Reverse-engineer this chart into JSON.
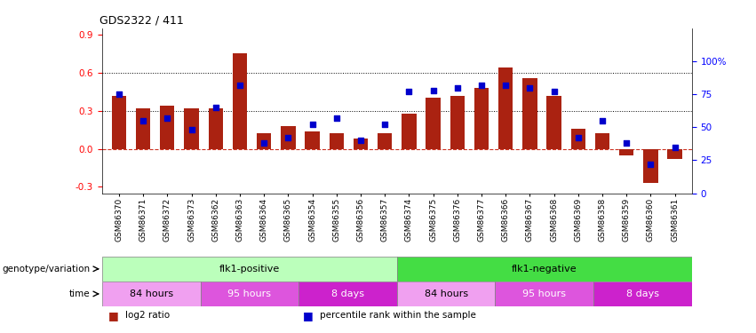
{
  "title": "GDS2322 / 411",
  "samples": [
    "GSM86370",
    "GSM86371",
    "GSM86372",
    "GSM86373",
    "GSM86362",
    "GSM86363",
    "GSM86364",
    "GSM86365",
    "GSM86354",
    "GSM86355",
    "GSM86356",
    "GSM86357",
    "GSM86374",
    "GSM86375",
    "GSM86376",
    "GSM86377",
    "GSM86366",
    "GSM86367",
    "GSM86368",
    "GSM86369",
    "GSM86358",
    "GSM86359",
    "GSM86360",
    "GSM86361"
  ],
  "log2_ratio": [
    0.42,
    0.32,
    0.34,
    0.32,
    0.32,
    0.75,
    0.12,
    0.18,
    0.14,
    0.12,
    0.08,
    0.12,
    0.28,
    0.4,
    0.42,
    0.48,
    0.64,
    0.56,
    0.42,
    0.16,
    0.12,
    -0.05,
    -0.27,
    -0.08
  ],
  "percentile": [
    75,
    55,
    57,
    48,
    65,
    82,
    38,
    42,
    52,
    57,
    40,
    52,
    77,
    78,
    80,
    82,
    82,
    80,
    77,
    42,
    55,
    38,
    22,
    35
  ],
  "bar_color": "#aa2211",
  "dot_color": "#0000cc",
  "hline_dashed_color": "#cc3322",
  "hline_dotted_color": "#000000",
  "ylim_left": [
    -0.35,
    0.95
  ],
  "yticks_left": [
    -0.3,
    0.0,
    0.3,
    0.6,
    0.9
  ],
  "yticks_right": [
    0,
    25,
    50,
    75,
    100
  ],
  "bg_color": "#ffffff",
  "genotype_row": [
    {
      "label": "flk1-positive",
      "start": 0,
      "end": 12,
      "color": "#bbffbb"
    },
    {
      "label": "flk1-negative",
      "start": 12,
      "end": 24,
      "color": "#44dd44"
    }
  ],
  "time_row": [
    {
      "label": "84 hours",
      "start": 0,
      "end": 4,
      "color": "#f0a0f0"
    },
    {
      "label": "95 hours",
      "start": 4,
      "end": 8,
      "color": "#dd55dd"
    },
    {
      "label": "8 days",
      "start": 8,
      "end": 12,
      "color": "#cc22cc"
    },
    {
      "label": "84 hours",
      "start": 12,
      "end": 16,
      "color": "#f0a0f0"
    },
    {
      "label": "95 hours",
      "start": 16,
      "end": 20,
      "color": "#dd55dd"
    },
    {
      "label": "8 days",
      "start": 20,
      "end": 24,
      "color": "#cc22cc"
    }
  ],
  "legend_items": [
    {
      "color": "#aa2211",
      "label": "log2 ratio"
    },
    {
      "color": "#0000cc",
      "label": "percentile rank within the sample"
    }
  ],
  "genotype_label": "genotype/variation",
  "time_label": "time"
}
